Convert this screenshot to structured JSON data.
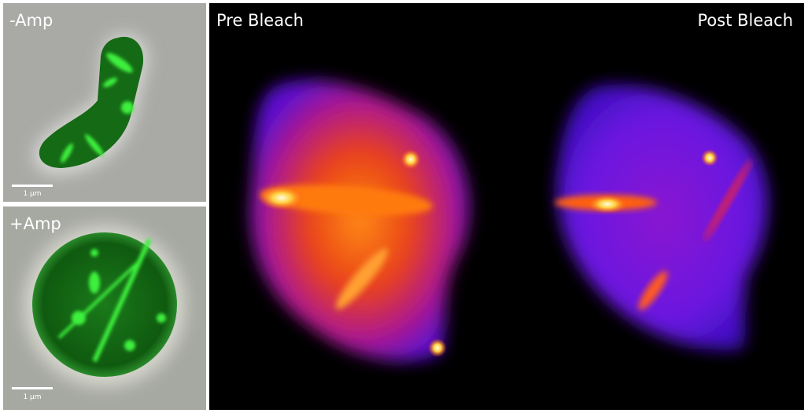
{
  "panels": [
    {
      "label": "-Amp",
      "scale_bar": "1 µm"
    },
    {
      "label": "+Amp",
      "scale_bar": "1 µm"
    }
  ],
  "main": {
    "left_label": "Pre Bleach",
    "right_label": "Post Bleach"
  }
}
